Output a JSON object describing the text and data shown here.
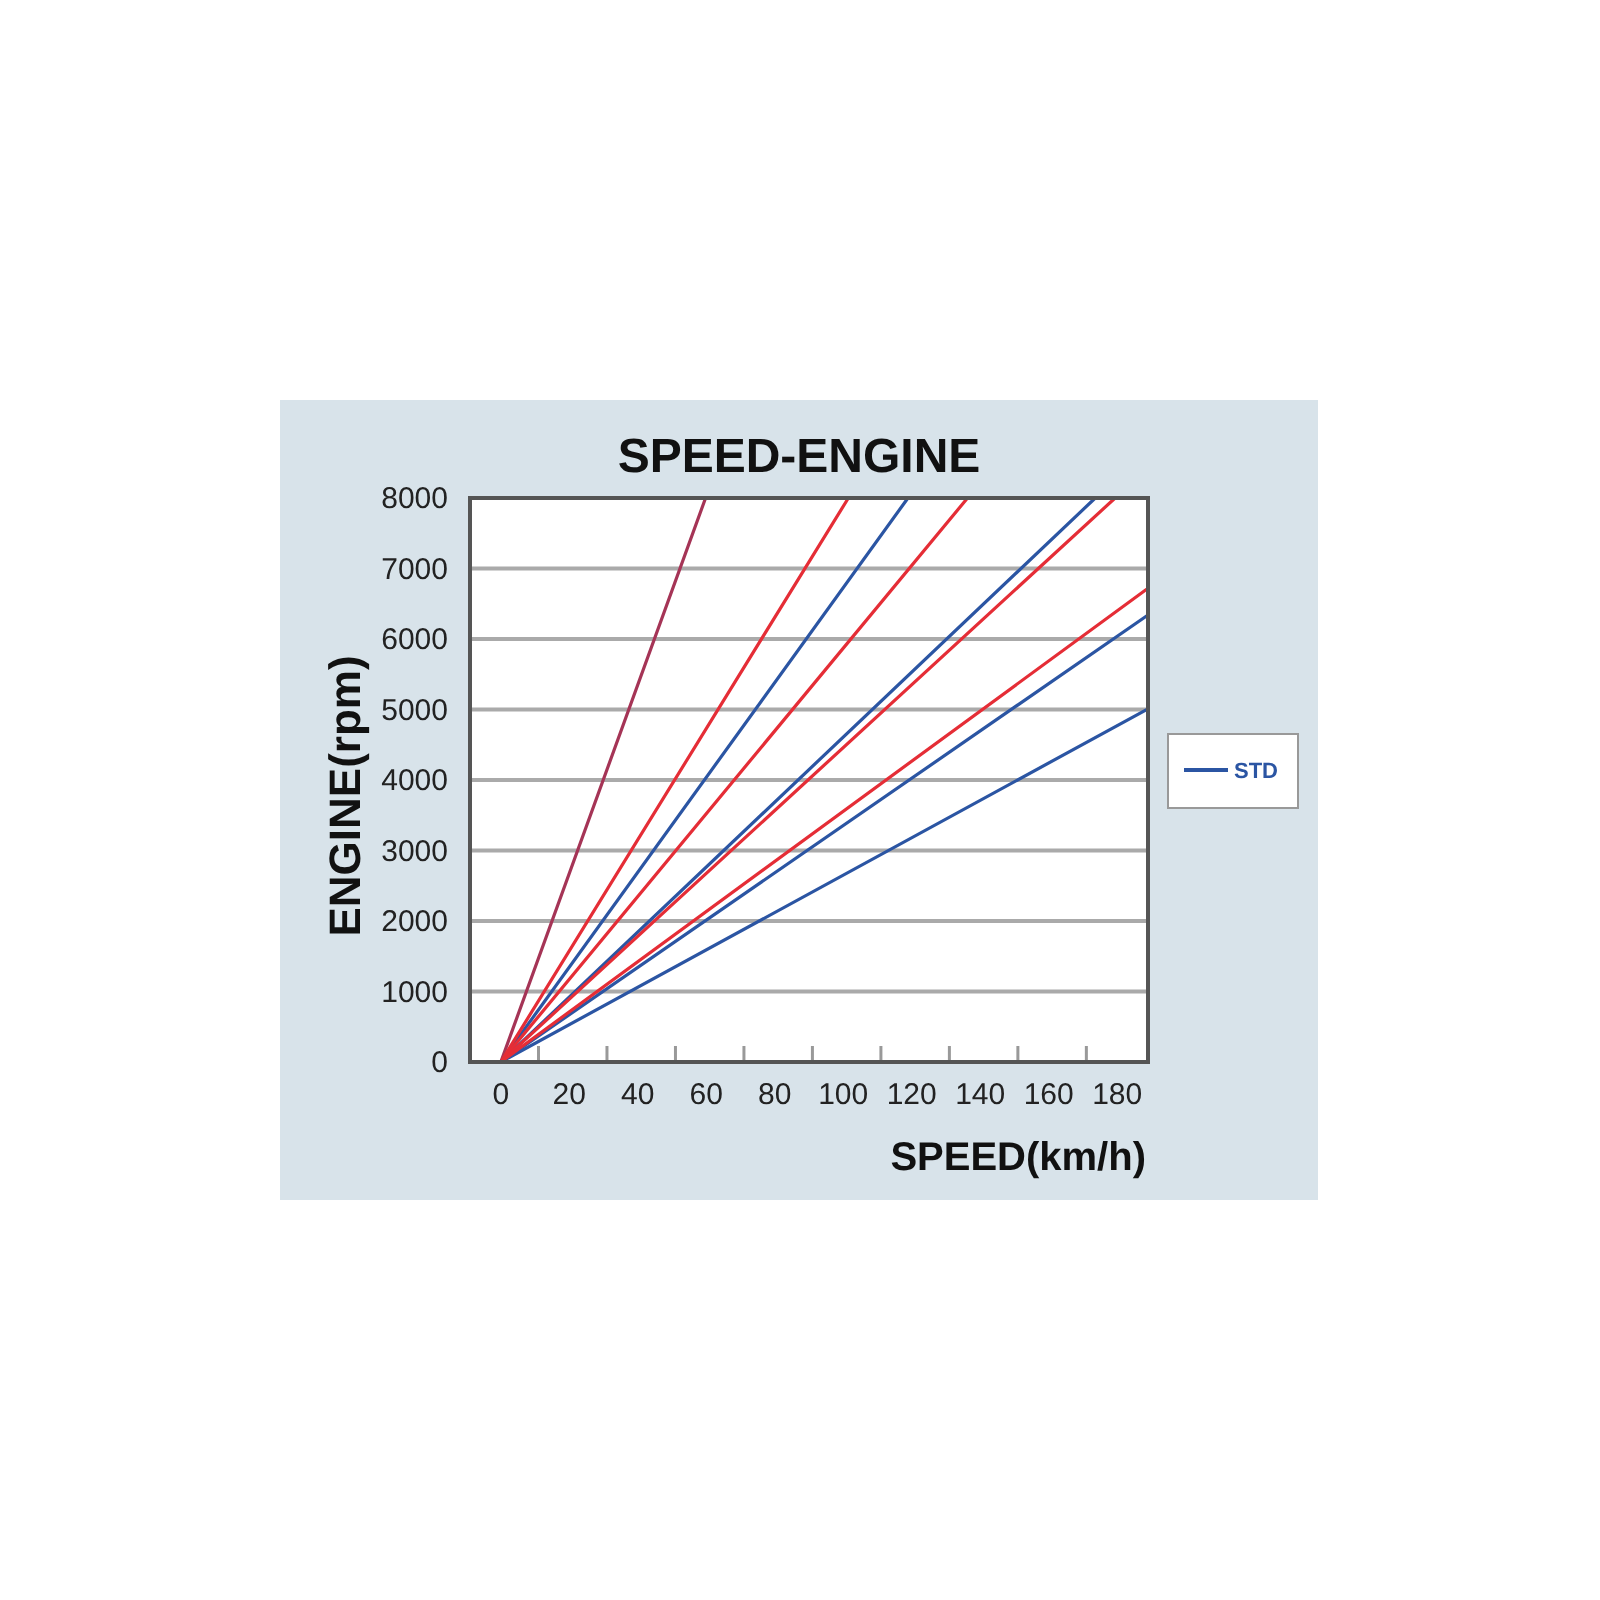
{
  "chart_data": {
    "type": "line",
    "title": "SPEED-ENGINE",
    "xlabel": "SPEED(km/h)",
    "ylabel": "ENGINE(rpm)",
    "xlim": [
      -9,
      189
    ],
    "xticks": [
      0,
      {
        "value": 11,
        "label": null
      },
      20,
      {
        "value": 31,
        "label": null
      },
      40,
      {
        "value": 51,
        "label": null
      },
      60,
      {
        "value": 71,
        "label": null
      },
      80,
      {
        "value": 91,
        "label": null
      },
      100,
      {
        "value": 111,
        "label": null
      },
      120,
      {
        "value": 131,
        "label": null
      },
      140,
      {
        "value": 151,
        "label": null
      },
      160,
      {
        "value": 171,
        "label": null
      },
      180
    ],
    "ylim": [
      0,
      8000
    ],
    "yticks": [
      0,
      1000,
      2000,
      3000,
      4000,
      5000,
      6000,
      7000,
      8000
    ],
    "grid": "y",
    "legend": "right",
    "series": [
      {
        "color": "#a53456",
        "x": [
          0,
          59.8
        ],
        "values": [
          0,
          8000
        ]
      },
      {
        "name": "STD",
        "color": "#2b55a3",
        "x": [
          0,
          118.9
        ],
        "values": [
          0,
          8000
        ]
      },
      {
        "color": "#2b55a3",
        "x": [
          0,
          173.6
        ],
        "values": [
          0,
          8000
        ]
      },
      {
        "color": "#2b55a3",
        "x": [
          0,
          189
        ],
        "values": [
          0,
          6340
        ]
      },
      {
        "color": "#2b55a3",
        "x": [
          0,
          189
        ],
        "values": [
          0,
          5010
        ]
      },
      {
        "color": "#e52d36",
        "x": [
          0,
          101.5
        ],
        "values": [
          0,
          8000
        ]
      },
      {
        "color": "#e52d36",
        "x": [
          0,
          136.3
        ],
        "values": [
          0,
          8000
        ]
      },
      {
        "color": "#e52d36",
        "x": [
          0,
          179.4
        ],
        "values": [
          0,
          8000
        ]
      },
      {
        "color": "#e52d36",
        "x": [
          0,
          189
        ],
        "values": [
          0,
          6720
        ]
      }
    ]
  }
}
